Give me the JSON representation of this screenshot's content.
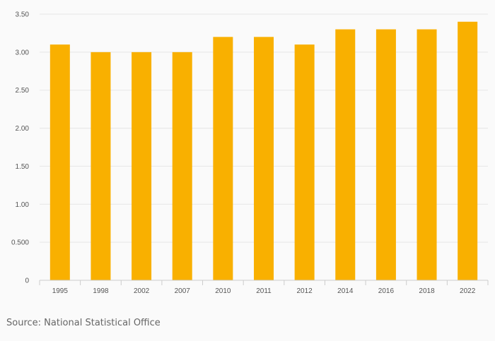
{
  "chart_data": {
    "type": "bar",
    "categories": [
      "1995",
      "1998",
      "2002",
      "2007",
      "2010",
      "2011",
      "2012",
      "2014",
      "2016",
      "2018",
      "2022"
    ],
    "values": [
      3.1,
      3.0,
      3.0,
      3.0,
      3.2,
      3.2,
      3.1,
      3.3,
      3.3,
      3.3,
      3.4
    ],
    "yticks": [
      "0",
      "0.500",
      "1.00",
      "1.50",
      "2.00",
      "2.50",
      "3.00",
      "3.50"
    ],
    "ylim": [
      0,
      3.5
    ],
    "grid": true,
    "bar_color": "#f9b000"
  },
  "source": "Source: National Statistical Office"
}
